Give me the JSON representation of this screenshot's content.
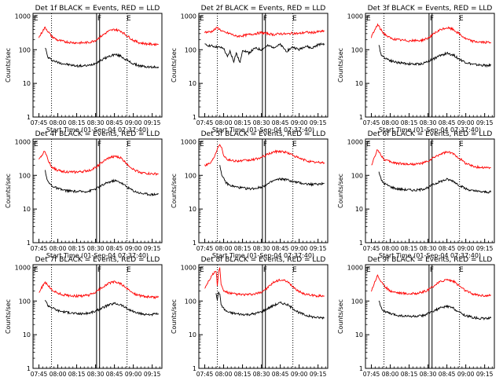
{
  "figure": {
    "xlabel": "Start Time (01-Sep-04 07:37:40)",
    "ylabel": "Counts/sec",
    "y_ticks": [
      "1",
      "10",
      "100",
      "1000"
    ],
    "x_ticks": [
      "07:45",
      "08:00",
      "08:15",
      "08:30",
      "08:45",
      "09:00",
      "09:15"
    ],
    "colors": {
      "events": "#000000",
      "lld": "#ff0000",
      "axes": "#000000"
    },
    "flag_labels": [
      "E",
      "F",
      "E"
    ]
  },
  "chart_data": [
    {
      "type": "line",
      "title": "Det 1f BLACK = Events, RED = LLD",
      "ylim": [
        1,
        1200
      ],
      "yscale": "log",
      "xlim": [
        -4.7,
        97.7
      ],
      "series": [
        {
          "name": "Events",
          "x": [
            5,
            7,
            10,
            15,
            20,
            25,
            30,
            35,
            40,
            45,
            50,
            55,
            60,
            65,
            70,
            75,
            80,
            85,
            90,
            95
          ],
          "values": [
            120,
            60,
            50,
            42,
            38,
            35,
            33,
            33,
            34,
            40,
            50,
            62,
            72,
            65,
            48,
            38,
            33,
            31,
            30,
            31
          ]
        },
        {
          "name": "LLD",
          "x": [
            0,
            3,
            5,
            7,
            10,
            15,
            20,
            25,
            30,
            35,
            40,
            45,
            50,
            55,
            60,
            65,
            70,
            75,
            80,
            85,
            90,
            95
          ],
          "values": [
            230,
            360,
            460,
            360,
            250,
            190,
            175,
            165,
            160,
            160,
            165,
            190,
            260,
            350,
            400,
            360,
            260,
            190,
            160,
            150,
            145,
            145
          ]
        }
      ]
    },
    {
      "type": "line",
      "title": "Det 2f BLACK = Events, RED = LLD",
      "ylim": [
        1,
        1200
      ],
      "yscale": "log",
      "xlim": [
        -4.7,
        97.7
      ],
      "series": [
        {
          "name": "Events",
          "x": [
            0,
            5,
            10,
            15,
            18,
            20,
            23,
            25,
            28,
            30,
            35,
            40,
            45,
            50,
            55,
            60,
            65,
            70,
            75,
            80,
            85,
            90,
            95
          ],
          "values": [
            140,
            130,
            120,
            110,
            60,
            90,
            45,
            80,
            40,
            100,
            80,
            110,
            100,
            130,
            120,
            140,
            90,
            120,
            100,
            130,
            110,
            140,
            150
          ]
        },
        {
          "name": "LLD",
          "x": [
            0,
            5,
            10,
            15,
            20,
            25,
            30,
            35,
            40,
            45,
            50,
            55,
            60,
            65,
            70,
            75,
            80,
            85,
            90,
            95
          ],
          "values": [
            330,
            340,
            450,
            330,
            300,
            250,
            260,
            280,
            300,
            320,
            300,
            280,
            300,
            290,
            310,
            300,
            330,
            320,
            340,
            350
          ]
        }
      ]
    },
    {
      "type": "line",
      "title": "Det 3f BLACK = Events, RED = LLD",
      "ylim": [
        1,
        1200
      ],
      "yscale": "log",
      "xlim": [
        -4.7,
        97.7
      ],
      "series": [
        {
          "name": "Events",
          "x": [
            6,
            8,
            10,
            15,
            20,
            25,
            30,
            35,
            40,
            45,
            50,
            55,
            60,
            65,
            70,
            75,
            80,
            85,
            90,
            95
          ],
          "values": [
            130,
            70,
            60,
            48,
            42,
            40,
            38,
            37,
            38,
            45,
            55,
            68,
            78,
            70,
            52,
            42,
            37,
            35,
            34,
            34
          ]
        },
        {
          "name": "LLD",
          "x": [
            0,
            3,
            5,
            7,
            10,
            15,
            20,
            25,
            30,
            35,
            40,
            45,
            50,
            55,
            60,
            65,
            70,
            75,
            80,
            85,
            90,
            95
          ],
          "values": [
            240,
            400,
            560,
            420,
            300,
            220,
            200,
            190,
            185,
            185,
            190,
            220,
            300,
            390,
            450,
            400,
            290,
            210,
            180,
            170,
            165,
            165
          ]
        }
      ]
    },
    {
      "type": "line",
      "title": "Det 4f BLACK = Events, RED = LLD",
      "ylim": [
        1,
        1200
      ],
      "yscale": "log",
      "xlim": [
        -4.7,
        97.7
      ],
      "series": [
        {
          "name": "Events",
          "x": [
            5,
            7,
            10,
            15,
            20,
            25,
            30,
            35,
            40,
            45,
            50,
            55,
            60,
            65,
            70,
            75,
            80,
            85,
            90,
            95
          ],
          "values": [
            140,
            65,
            50,
            40,
            36,
            34,
            33,
            33,
            34,
            40,
            50,
            62,
            70,
            62,
            45,
            35,
            30,
            28,
            27,
            28
          ]
        },
        {
          "name": "LLD",
          "x": [
            0,
            3,
            5,
            7,
            10,
            15,
            20,
            25,
            30,
            35,
            40,
            45,
            50,
            55,
            60,
            65,
            70,
            75,
            80,
            85,
            90,
            95
          ],
          "values": [
            280,
            440,
            520,
            300,
            180,
            140,
            130,
            125,
            125,
            130,
            140,
            170,
            240,
            320,
            370,
            330,
            220,
            150,
            125,
            115,
            110,
            110
          ]
        }
      ]
    },
    {
      "type": "line",
      "title": "Det 5f BLACK = Events, RED = LLD",
      "ylim": [
        1,
        1200
      ],
      "yscale": "log",
      "xlim": [
        -4.7,
        97.7
      ],
      "series": [
        {
          "name": "Events",
          "x": [
            12,
            14,
            17,
            20,
            25,
            30,
            35,
            40,
            45,
            50,
            55,
            60,
            65,
            70,
            75,
            80,
            85,
            90,
            95
          ],
          "values": [
            200,
            90,
            60,
            50,
            45,
            42,
            40,
            41,
            45,
            55,
            70,
            78,
            75,
            65,
            60,
            56,
            54,
            55,
            58
          ]
        },
        {
          "name": "LLD",
          "x": [
            0,
            5,
            8,
            11,
            13,
            15,
            18,
            20,
            25,
            30,
            35,
            40,
            45,
            50,
            55,
            60,
            65,
            70,
            75,
            80,
            85,
            90,
            95
          ],
          "values": [
            200,
            240,
            400,
            800,
            750,
            400,
            300,
            280,
            270,
            270,
            280,
            300,
            340,
            420,
            500,
            520,
            480,
            400,
            320,
            280,
            250,
            240,
            240
          ]
        }
      ]
    },
    {
      "type": "line",
      "title": "Det 6f BLACK = Events, RED = LLD",
      "ylim": [
        1,
        1200
      ],
      "yscale": "log",
      "xlim": [
        -4.7,
        97.7
      ],
      "series": [
        {
          "name": "Events",
          "x": [
            6,
            8,
            10,
            15,
            20,
            25,
            30,
            35,
            40,
            45,
            50,
            55,
            60,
            65,
            70,
            75,
            80,
            85,
            90,
            95
          ],
          "values": [
            130,
            70,
            58,
            46,
            40,
            38,
            37,
            36,
            38,
            44,
            55,
            66,
            76,
            68,
            50,
            40,
            35,
            33,
            32,
            32
          ]
        },
        {
          "name": "LLD",
          "x": [
            0,
            3,
            5,
            7,
            10,
            15,
            20,
            25,
            30,
            35,
            40,
            45,
            50,
            55,
            60,
            65,
            70,
            75,
            80,
            85,
            90,
            95
          ],
          "values": [
            200,
            380,
            600,
            440,
            300,
            250,
            230,
            220,
            215,
            215,
            225,
            260,
            340,
            430,
            490,
            440,
            320,
            230,
            190,
            175,
            170,
            170
          ]
        }
      ]
    },
    {
      "type": "line",
      "title": "Det 7f BLACK = Events, RED = LLD",
      "ylim": [
        1,
        1200
      ],
      "yscale": "log",
      "xlim": [
        -4.7,
        97.7
      ],
      "series": [
        {
          "name": "Events",
          "x": [
            5,
            7,
            10,
            15,
            20,
            25,
            30,
            35,
            40,
            45,
            50,
            55,
            60,
            65,
            70,
            75,
            80,
            85,
            90,
            95
          ],
          "values": [
            110,
            75,
            65,
            52,
            48,
            45,
            42,
            42,
            44,
            50,
            62,
            75,
            85,
            78,
            60,
            48,
            42,
            40,
            40,
            42
          ]
        },
        {
          "name": "LLD",
          "x": [
            0,
            3,
            5,
            7,
            10,
            15,
            20,
            25,
            30,
            35,
            40,
            45,
            50,
            55,
            60,
            65,
            70,
            75,
            80,
            85,
            90,
            95
          ],
          "values": [
            180,
            280,
            360,
            300,
            220,
            170,
            150,
            145,
            140,
            142,
            150,
            180,
            250,
            330,
            370,
            330,
            230,
            170,
            145,
            135,
            130,
            130
          ]
        }
      ]
    },
    {
      "type": "line",
      "title": "Det 8f BLACK = Events, RED = LLD",
      "ylim": [
        1,
        1200
      ],
      "yscale": "log",
      "xlim": [
        -4.7,
        97.7
      ],
      "series": [
        {
          "name": "Events",
          "x": [
            9,
            10,
            11,
            12,
            13,
            15,
            17,
            20,
            25,
            30,
            35,
            40,
            45,
            50,
            55,
            60,
            65,
            70,
            75,
            80,
            85,
            90,
            95
          ],
          "values": [
            180,
            100,
            200,
            150,
            80,
            60,
            50,
            45,
            42,
            40,
            40,
            42,
            48,
            60,
            75,
            88,
            80,
            60,
            45,
            38,
            34,
            32,
            32
          ]
        },
        {
          "name": "LLD",
          "x": [
            0,
            3,
            6,
            9,
            10,
            11,
            12,
            13,
            15,
            20,
            25,
            30,
            35,
            40,
            45,
            50,
            55,
            60,
            65,
            70,
            75,
            80,
            85,
            90,
            95
          ],
          "values": [
            240,
            400,
            600,
            800,
            300,
            700,
            1000,
            300,
            200,
            170,
            160,
            155,
            155,
            160,
            185,
            250,
            360,
            430,
            380,
            270,
            190,
            160,
            148,
            142,
            142
          ]
        }
      ]
    },
    {
      "type": "line",
      "title": "Det 9f BLACK = Events, RED = LLD",
      "ylim": [
        1,
        1200
      ],
      "yscale": "log",
      "xlim": [
        -4.7,
        97.7
      ],
      "series": [
        {
          "name": "Events",
          "x": [
            6,
            8,
            10,
            15,
            20,
            25,
            30,
            35,
            40,
            45,
            50,
            55,
            60,
            65,
            70,
            75,
            80,
            85,
            90,
            95
          ],
          "values": [
            110,
            60,
            50,
            42,
            38,
            36,
            35,
            35,
            36,
            42,
            52,
            62,
            70,
            62,
            46,
            37,
            33,
            31,
            30,
            31
          ]
        },
        {
          "name": "LLD",
          "x": [
            0,
            3,
            5,
            7,
            10,
            15,
            20,
            25,
            30,
            35,
            40,
            45,
            50,
            55,
            60,
            65,
            70,
            75,
            80,
            85,
            90,
            95
          ],
          "values": [
            200,
            400,
            580,
            420,
            280,
            200,
            180,
            170,
            165,
            168,
            180,
            210,
            290,
            380,
            440,
            390,
            280,
            200,
            165,
            150,
            145,
            145
          ]
        }
      ]
    }
  ]
}
